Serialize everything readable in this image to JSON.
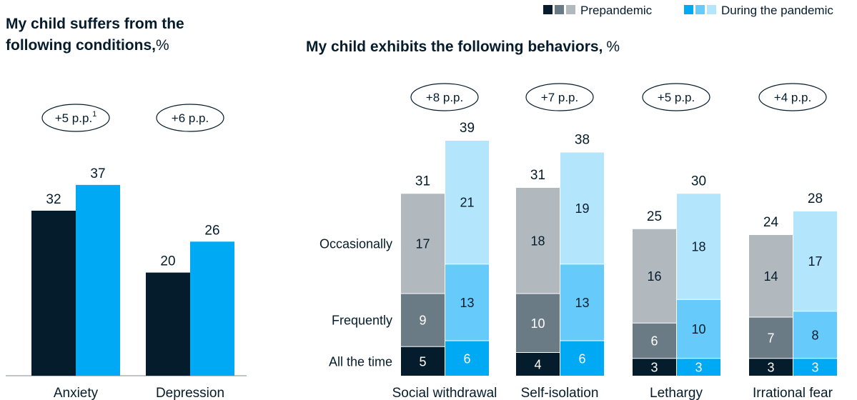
{
  "legend": {
    "prepandemic_label": "Prepandemic",
    "pandemic_label": "During the pandemic",
    "prepandemic_colors": [
      "#051c2c",
      "#6b7b85",
      "#b1b9bf"
    ],
    "pandemic_colors": [
      "#00a9f4",
      "#66cbfa",
      "#b3e5fc"
    ]
  },
  "chart_data": [
    {
      "type": "bar",
      "title": "My child suffers from the following conditions,",
      "unit": "%",
      "categories": [
        "Anxiety",
        "Depression"
      ],
      "series": [
        {
          "name": "Prepandemic",
          "color": "#051c2c",
          "values": [
            32,
            20
          ]
        },
        {
          "name": "During the pandemic",
          "color": "#00a9f4",
          "values": [
            37,
            26
          ]
        }
      ],
      "annotations": [
        {
          "category": "Anxiety",
          "text": "+5 p.p.",
          "superscript": "1"
        },
        {
          "category": "Depression",
          "text": "+6 p.p.",
          "superscript": ""
        }
      ],
      "ylim": [
        0,
        50
      ]
    },
    {
      "type": "stacked_bar",
      "title": "My child exhibits the following behaviors,",
      "unit": "%",
      "categories": [
        "Social withdrawal",
        "Self-isolation",
        "Lethargy",
        "Irrational fear"
      ],
      "segments": [
        "All the time",
        "Frequently",
        "Occasionally"
      ],
      "groups": [
        {
          "name": "Prepandemic",
          "totals": [
            31,
            31,
            25,
            24
          ],
          "values": {
            "All the time": [
              5,
              4,
              3,
              3
            ],
            "Frequently": [
              9,
              10,
              6,
              7
            ],
            "Occasionally": [
              17,
              18,
              16,
              14
            ]
          }
        },
        {
          "name": "During the pandemic",
          "totals": [
            39,
            38,
            30,
            28
          ],
          "values": {
            "All the time": [
              6,
              6,
              3,
              3
            ],
            "Frequently": [
              13,
              13,
              10,
              8
            ],
            "Occasionally": [
              21,
              19,
              18,
              17
            ]
          }
        }
      ],
      "annotations": [
        "+8 p.p.",
        "+7 p.p.",
        "+5 p.p.",
        "+4 p.p."
      ],
      "ylim": [
        0,
        50
      ]
    }
  ]
}
